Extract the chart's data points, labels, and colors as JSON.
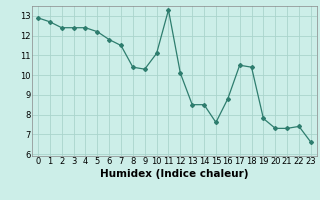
{
  "x": [
    0,
    1,
    2,
    3,
    4,
    5,
    6,
    7,
    8,
    9,
    10,
    11,
    12,
    13,
    14,
    15,
    16,
    17,
    18,
    19,
    20,
    21,
    22,
    23
  ],
  "y": [
    12.9,
    12.7,
    12.4,
    12.4,
    12.4,
    12.2,
    11.8,
    11.5,
    10.4,
    10.3,
    11.1,
    13.3,
    10.1,
    8.5,
    8.5,
    7.6,
    8.8,
    10.5,
    10.4,
    7.8,
    7.3,
    7.3,
    7.4,
    6.6
  ],
  "line_color": "#2e7d6e",
  "marker": "D",
  "marker_size": 2,
  "bg_color": "#cceee8",
  "grid_color": "#aad4cc",
  "xlabel": "Humidex (Indice chaleur)",
  "xlim": [
    -0.5,
    23.5
  ],
  "ylim": [
    5.9,
    13.5
  ],
  "yticks": [
    6,
    7,
    8,
    9,
    10,
    11,
    12,
    13
  ],
  "xticks": [
    0,
    1,
    2,
    3,
    4,
    5,
    6,
    7,
    8,
    9,
    10,
    11,
    12,
    13,
    14,
    15,
    16,
    17,
    18,
    19,
    20,
    21,
    22,
    23
  ],
  "tick_fontsize": 6,
  "label_fontsize": 7.5
}
